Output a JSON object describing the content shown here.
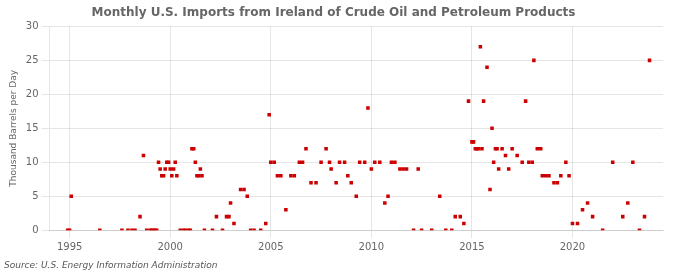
{
  "chart_data": {
    "type": "scatter",
    "title": "Monthly U.S. Imports from Ireland of Crude Oil and Petroleum Products",
    "ylabel": "Thousand Barrels per Day",
    "annotation": "Source: U.S. Energy Information Administration",
    "color": "#cc0000",
    "marker": "square",
    "grid": true,
    "xlim": [
      1994.0,
      2024.5
    ],
    "ylim": [
      0,
      30
    ],
    "xticks": [
      1995,
      2000,
      2005,
      2010,
      2015,
      2020
    ],
    "yticks": [
      0,
      5,
      10,
      15,
      20,
      25,
      30
    ],
    "x": [
      1994.9,
      1995.0,
      1995.08,
      1996.5,
      1997.6,
      1997.9,
      1998.1,
      1998.25,
      1998.5,
      1998.67,
      1998.83,
      1999.0,
      1999.08,
      1999.17,
      1999.25,
      1999.33,
      1999.42,
      1999.5,
      1999.58,
      1999.67,
      1999.75,
      1999.83,
      1999.92,
      2000.0,
      2000.08,
      2000.17,
      2000.25,
      2000.33,
      2000.5,
      2000.67,
      2000.75,
      2000.9,
      2001.0,
      2001.08,
      2001.17,
      2001.25,
      2001.33,
      2001.42,
      2001.5,
      2001.58,
      2001.7,
      2002.1,
      2002.3,
      2002.6,
      2002.8,
      2002.92,
      2003.0,
      2003.17,
      2003.5,
      2003.67,
      2003.83,
      2004.0,
      2004.17,
      2004.5,
      2004.75,
      2004.92,
      2005.0,
      2005.17,
      2005.33,
      2005.5,
      2005.75,
      2006.0,
      2006.17,
      2006.42,
      2006.58,
      2006.75,
      2007.0,
      2007.25,
      2007.5,
      2007.75,
      2007.92,
      2008.0,
      2008.25,
      2008.42,
      2008.67,
      2008.83,
      2009.0,
      2009.25,
      2009.42,
      2009.67,
      2009.83,
      2010.0,
      2010.17,
      2010.42,
      2010.67,
      2010.83,
      2011.0,
      2011.17,
      2011.42,
      2011.58,
      2011.75,
      2012.1,
      2012.33,
      2012.5,
      2013.0,
      2013.4,
      2013.7,
      2014.0,
      2014.17,
      2014.42,
      2014.6,
      2014.83,
      2015.0,
      2015.08,
      2015.17,
      2015.25,
      2015.33,
      2015.42,
      2015.5,
      2015.58,
      2015.75,
      2015.9,
      2016.0,
      2016.08,
      2016.17,
      2016.25,
      2016.33,
      2016.5,
      2016.67,
      2016.83,
      2017.0,
      2017.25,
      2017.5,
      2017.67,
      2017.83,
      2018.0,
      2018.08,
      2018.25,
      2018.42,
      2018.5,
      2018.67,
      2018.83,
      2019.08,
      2019.25,
      2019.42,
      2019.67,
      2019.83,
      2020.0,
      2020.25,
      2020.5,
      2020.75,
      2021.0,
      2021.5,
      2022.0,
      2022.5,
      2022.75,
      2023.0,
      2023.33,
      2023.58,
      2023.83
    ],
    "values": [
      0,
      0,
      5,
      0,
      0,
      0,
      0,
      0,
      2,
      11,
      0,
      0,
      0,
      0,
      0,
      0,
      10,
      9,
      8,
      8,
      9,
      10,
      10,
      9,
      8,
      9,
      10,
      8,
      0,
      0,
      0,
      0,
      0,
      12,
      12,
      10,
      8,
      8,
      9,
      8,
      0,
      0,
      2,
      0,
      2,
      2,
      4,
      1,
      6,
      6,
      5,
      0,
      0,
      0,
      1,
      17,
      10,
      10,
      8,
      8,
      3,
      8,
      8,
      10,
      10,
      12,
      7,
      7,
      10,
      12,
      10,
      9,
      7,
      10,
      10,
      8,
      7,
      5,
      10,
      10,
      18,
      9,
      10,
      10,
      4,
      5,
      10,
      10,
      9,
      9,
      9,
      0,
      9,
      0,
      0,
      5,
      0,
      0,
      2,
      2,
      1,
      19,
      13,
      13,
      12,
      12,
      12,
      27,
      12,
      19,
      24,
      6,
      15,
      10,
      12,
      12,
      9,
      12,
      11,
      9,
      12,
      11,
      10,
      19,
      10,
      10,
      25,
      12,
      12,
      8,
      8,
      8,
      7,
      7,
      8,
      10,
      8,
      1,
      1,
      3,
      4,
      2,
      0,
      10,
      2,
      4,
      10,
      0,
      2,
      25
    ]
  }
}
